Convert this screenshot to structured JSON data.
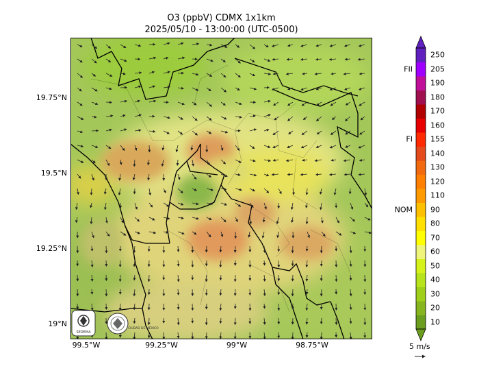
{
  "header": {
    "title": "O3 (ppbV) CDMX 1x1km",
    "subtitle": "2025/05/10 - 13:00:00 (UTC-0500)"
  },
  "axes": {
    "lat_ticks": [
      {
        "label": "19.75°N",
        "value": 19.75
      },
      {
        "label": "19.5°N",
        "value": 19.5
      },
      {
        "label": "19.25°N",
        "value": 19.25
      },
      {
        "label": "19°N",
        "value": 19.0
      }
    ],
    "lon_ticks": [
      {
        "label": "99.5°W",
        "value": -99.5
      },
      {
        "label": "99.25°W",
        "value": -99.25
      },
      {
        "label": "99°W",
        "value": -99.0
      },
      {
        "label": "98.75°W",
        "value": -98.75
      }
    ]
  },
  "colorbar": {
    "unit": "ppbV",
    "levels": [
      "10",
      "20",
      "30",
      "40",
      "50",
      "60",
      "70",
      "80",
      "90",
      "110",
      "120",
      "130",
      "140",
      "155",
      "160",
      "170",
      "180",
      "190",
      "205",
      "250"
    ],
    "colors": [
      "#6b9e1f",
      "#87b51f",
      "#9fcf1a",
      "#b7e31d",
      "#d6f21b",
      "#eef57a",
      "#ffff00",
      "#ffe000",
      "#ffc000",
      "#ff9a00",
      "#ff7f00",
      "#f26a10",
      "#e34a1c",
      "#ff2a00",
      "#e80000",
      "#b00000",
      "#a0104f",
      "#c0109a",
      "#a000ff",
      "#6020c0"
    ],
    "thresholds": [
      {
        "label": "FII",
        "value": 205
      },
      {
        "label": "FI",
        "value": 155
      },
      {
        "label": "NOM",
        "value": 90
      }
    ]
  },
  "wind": {
    "label": "5 m/s"
  },
  "logos": [
    {
      "icon": "sedema-logo-icon",
      "text": "SEDEMA"
    },
    {
      "icon": "cdmx-logo-icon",
      "text": "CIUDAD DE MÉXICO"
    }
  ]
}
